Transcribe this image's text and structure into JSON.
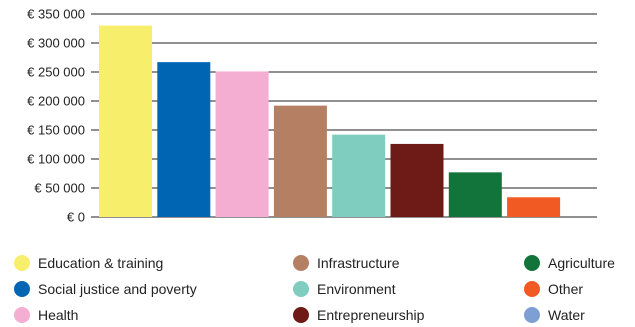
{
  "chart_data": {
    "type": "bar",
    "categories": [
      "Education & training",
      "Social justice and poverty",
      "Health",
      "Infrastructure",
      "Environment",
      "Entrepreneurship",
      "Agriculture",
      "Other",
      "Water"
    ],
    "values": [
      330000,
      267000,
      251000,
      192000,
      142000,
      126000,
      77000,
      34000,
      0
    ],
    "colors": [
      "#f7ee6b",
      "#0066b3",
      "#f4aed1",
      "#b57f63",
      "#7ecdbf",
      "#6e1b17",
      "#13743b",
      "#f25a24",
      "#7e9fd3"
    ],
    "yticks": [
      "€ 0",
      "€ 50 000",
      "€ 100 000",
      "€ 150 000",
      "€ 200 000",
      "€ 250 000",
      "€ 300 000",
      "€ 350 000"
    ],
    "ylim": [
      0,
      350000
    ],
    "grid": true,
    "legend_position": "bottom"
  }
}
